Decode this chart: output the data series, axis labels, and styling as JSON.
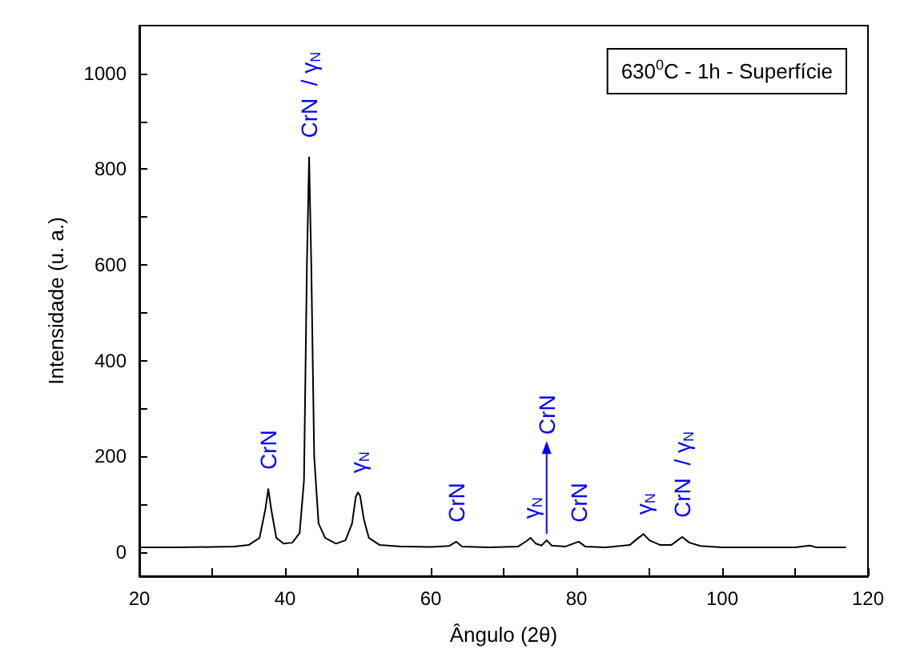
{
  "chart_data": {
    "type": "line",
    "xlabel": "Ângulo (2θ)",
    "ylabel": "Intensidade (u. a.)",
    "x": [
      20,
      25,
      30,
      33,
      35,
      36.5,
      37.3,
      37.7,
      38.1,
      38.8,
      39.8,
      41,
      42,
      42.6,
      43.0,
      43.3,
      43.6,
      44.0,
      44.6,
      45.5,
      47,
      48.3,
      49.2,
      49.7,
      50.0,
      50.3,
      50.8,
      51.5,
      53,
      56,
      60,
      62.5,
      63.5,
      64.3,
      68,
      72,
      73.2,
      73.7,
      74.4,
      75.2,
      75.9,
      76.6,
      78.5,
      80.3,
      81.2,
      84,
      87.3,
      88.5,
      89.2,
      90,
      91.5,
      93,
      94.5,
      95.5,
      97,
      100,
      105,
      110,
      112,
      113,
      117
    ],
    "series": [
      {
        "color": "#000000",
        "values": [
          10,
          10,
          11,
          12,
          15,
          30,
          90,
          132,
          90,
          30,
          18,
          20,
          40,
          150,
          600,
          825,
          600,
          200,
          60,
          30,
          18,
          25,
          60,
          115,
          125,
          118,
          70,
          30,
          15,
          12,
          11,
          13,
          22,
          12,
          10,
          12,
          24,
          30,
          18,
          14,
          25,
          14,
          12,
          22,
          12,
          10,
          15,
          30,
          38,
          25,
          15,
          15,
          32,
          20,
          13,
          10,
          10,
          10,
          14,
          10,
          10
        ]
      }
    ],
    "xlim": [
      20,
      120
    ],
    "ylim": [
      -50,
      1100
    ],
    "xticks": [
      20,
      {
        "value": 30,
        "label": null
      },
      40,
      {
        "value": 50,
        "label": null
      },
      60,
      {
        "value": 70,
        "label": null
      },
      80,
      {
        "value": 90,
        "label": null
      },
      100,
      {
        "value": 110,
        "label": null
      },
      120
    ],
    "yticks": [
      0,
      {
        "value": 100,
        "label": null
      },
      200,
      {
        "value": 300,
        "label": null
      },
      400,
      {
        "value": 500,
        "label": null
      },
      600,
      {
        "value": 700,
        "label": null
      },
      800,
      {
        "value": 900,
        "label": null
      },
      1000
    ],
    "grid": false,
    "marker": "none",
    "line_style": "solid",
    "annotations": [
      {
        "text": "630$^{0}$C - 1h - Superfície"
      },
      {
        "text": "CrN",
        "x": 37.7,
        "y": 132
      },
      {
        "text": "CrN  / γ$_{N}$",
        "x": 43.3,
        "y": 825
      },
      {
        "text": "γ$_{N}$",
        "x": 50.0,
        "y": 125
      },
      {
        "text": "CrN",
        "x": 63.5,
        "y": 22
      },
      {
        "text": "γ$_{N}$",
        "x": 73.7,
        "y": 30
      },
      {
        "text": "CrN",
        "x": 75.9,
        "y": 25
      },
      {
        "text": "CrN",
        "x": 80.3,
        "y": 22
      },
      {
        "text": "γ$_{N}$",
        "x": 89.2,
        "y": 38
      },
      {
        "text": "CrN  / γ$_{N}$",
        "x": 94.5,
        "y": 32
      }
    ]
  }
}
